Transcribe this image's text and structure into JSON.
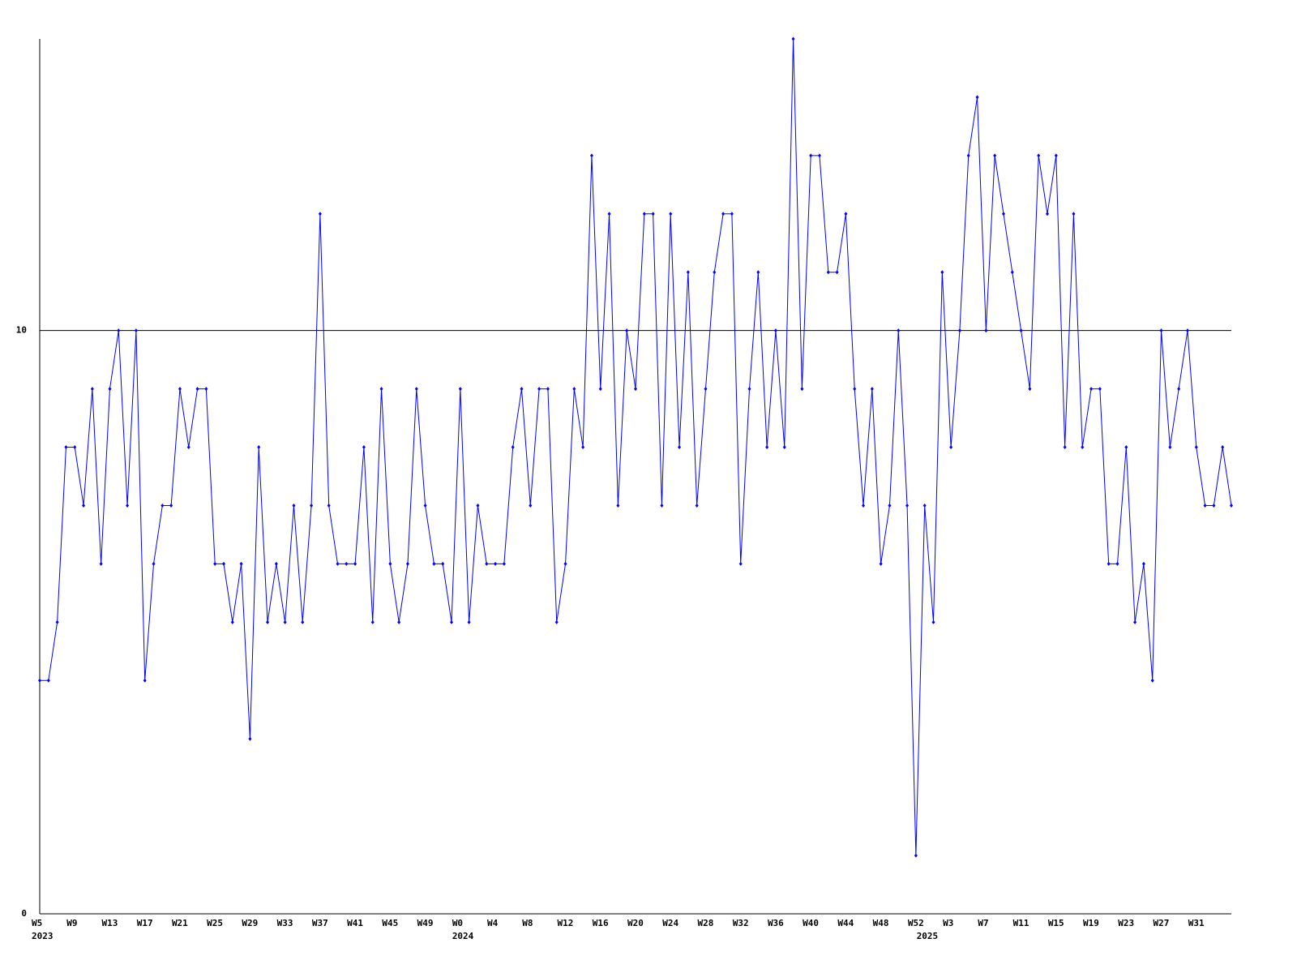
{
  "chart_data": {
    "type": "line",
    "categories": [
      "W5",
      null,
      null,
      null,
      "W9",
      null,
      null,
      null,
      "W13",
      null,
      null,
      null,
      "W17",
      null,
      null,
      null,
      "W21",
      null,
      null,
      null,
      "W25",
      null,
      null,
      null,
      "W29",
      null,
      null,
      null,
      "W33",
      null,
      null,
      null,
      "W37",
      null,
      null,
      null,
      "W41",
      null,
      null,
      null,
      "W45",
      null,
      null,
      null,
      "W49",
      null,
      null,
      null,
      "W0",
      null,
      null,
      null,
      "W4",
      null,
      null,
      null,
      "W8",
      null,
      null,
      null,
      "W12",
      null,
      null,
      null,
      "W16",
      null,
      null,
      null,
      "W20",
      null,
      null,
      null,
      "W24",
      null,
      null,
      null,
      "W28",
      null,
      null,
      null,
      "W32",
      null,
      null,
      null,
      "W36",
      null,
      null,
      null,
      "W40",
      null,
      null,
      null,
      "W44",
      null,
      null,
      null,
      "W48",
      null,
      null,
      null,
      "W52",
      null,
      null,
      null,
      "W3",
      null,
      null,
      null,
      "W7",
      null,
      null,
      null,
      "W11",
      null,
      null,
      null,
      "W15",
      null,
      null,
      null,
      "W19",
      null,
      null,
      null,
      "W23",
      null,
      null,
      null,
      "W27",
      null,
      null,
      null,
      "W31",
      null,
      null,
      null,
      null
    ],
    "sublabels": [
      "2023",
      null,
      null,
      null,
      null,
      null,
      null,
      null,
      null,
      null,
      null,
      null,
      null,
      null,
      null,
      null,
      null,
      null,
      null,
      null,
      null,
      null,
      null,
      null,
      null,
      null,
      null,
      null,
      null,
      null,
      null,
      null,
      null,
      null,
      null,
      null,
      null,
      null,
      null,
      null,
      null,
      null,
      null,
      null,
      null,
      null,
      null,
      null,
      "2024",
      null,
      null,
      null,
      null,
      null,
      null,
      null,
      null,
      null,
      null,
      null,
      null,
      null,
      null,
      null,
      null,
      null,
      null,
      null,
      null,
      null,
      null,
      null,
      null,
      null,
      null,
      null,
      null,
      null,
      null,
      null,
      null,
      null,
      null,
      null,
      null,
      null,
      null,
      null,
      null,
      null,
      null,
      null,
      null,
      null,
      null,
      null,
      null,
      null,
      null,
      null,
      null,
      "2025",
      null,
      null,
      null,
      null,
      null,
      null,
      null,
      null,
      null,
      null,
      null,
      null,
      null,
      null,
      null,
      null,
      null,
      null,
      null,
      null,
      null,
      null,
      null,
      null,
      null,
      null,
      null,
      null,
      null,
      null,
      null,
      null,
      null,
      null,
      null
    ],
    "values": [
      4,
      4,
      5,
      8,
      8,
      7,
      9,
      6,
      9,
      10,
      7,
      10,
      4,
      6,
      7,
      7,
      9,
      8,
      9,
      9,
      6,
      6,
      5,
      6,
      3,
      8,
      5,
      6,
      5,
      7,
      5,
      7,
      12,
      7,
      6,
      6,
      6,
      8,
      5,
      9,
      6,
      5,
      6,
      9,
      7,
      6,
      6,
      5,
      9,
      5,
      7,
      6,
      6,
      6,
      8,
      9,
      7,
      9,
      9,
      5,
      6,
      9,
      8,
      13,
      9,
      12,
      7,
      10,
      9,
      12,
      12,
      7,
      12,
      8,
      11,
      7,
      9,
      11,
      12,
      12,
      6,
      9,
      11,
      8,
      10,
      8,
      15,
      9,
      13,
      13,
      11,
      11,
      12,
      9,
      7,
      9,
      6,
      7,
      10,
      7,
      1,
      7,
      5,
      11,
      8,
      10,
      13,
      14,
      10,
      13,
      12,
      11,
      10,
      9,
      13,
      12,
      13,
      8,
      12,
      8,
      9,
      9,
      6,
      6,
      8,
      5,
      6,
      4,
      10,
      8,
      9,
      10,
      8,
      7,
      7,
      8,
      7
    ],
    "color": "#0000ff",
    "ylim": [
      0,
      15
    ],
    "yticks": [
      0,
      10
    ],
    "grid": true
  }
}
